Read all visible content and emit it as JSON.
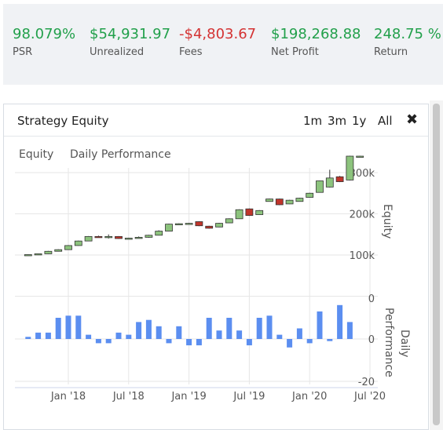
{
  "stats": [
    {
      "value": "98.079%",
      "label": "PSR",
      "tone": "green"
    },
    {
      "value": "$54,931.97",
      "label": "Unrealized",
      "tone": "green"
    },
    {
      "value": "-$4,803.67",
      "label": "Fees",
      "tone": "red"
    },
    {
      "value": "$198,268.88",
      "label": "Net Profit",
      "tone": "green"
    },
    {
      "value": "248.75 %",
      "label": "Return",
      "tone": "green"
    }
  ],
  "panel": {
    "title": "Strategy Equity",
    "ranges": [
      "1m",
      "3m",
      "1y",
      "All"
    ],
    "close_icon": "close-icon"
  },
  "colors": {
    "up": "#8cc37d",
    "down": "#c0352b",
    "bar": "#5b8ef0",
    "green": "#22a04b",
    "red": "#d43333"
  },
  "chart_data": [
    {
      "type": "candlestick",
      "legend": [
        "Equity",
        "Daily Performance"
      ],
      "ylabel": "Equity",
      "yticks": [
        "100k",
        "200k",
        "300k"
      ],
      "ylim": [
        0,
        340000
      ],
      "x_ticks": [
        "Jan '18",
        "Jul '18",
        "Jan '19",
        "Jul '19",
        "Jan '20",
        "Jul '20"
      ],
      "x_tick_dates": [
        "2018-01",
        "2018-07",
        "2019-01",
        "2019-07",
        "2020-01",
        "2020-07"
      ],
      "candles": [
        {
          "date": "2017-09",
          "open": 100000,
          "close": 101000,
          "high": 101500,
          "low": 99500
        },
        {
          "date": "2017-10",
          "open": 101000,
          "close": 103000,
          "high": 103500,
          "low": 100500
        },
        {
          "date": "2017-11",
          "open": 103000,
          "close": 109000,
          "high": 110000,
          "low": 102500
        },
        {
          "date": "2017-12",
          "open": 109000,
          "close": 113000,
          "high": 114000,
          "low": 108500
        },
        {
          "date": "2018-01",
          "open": 113000,
          "close": 123000,
          "high": 124000,
          "low": 112500
        },
        {
          "date": "2018-02",
          "open": 123000,
          "close": 134000,
          "high": 135000,
          "low": 122500
        },
        {
          "date": "2018-03",
          "open": 134000,
          "close": 145000,
          "high": 146000,
          "low": 133500
        },
        {
          "date": "2018-04",
          "open": 145000,
          "close": 143000,
          "high": 147000,
          "low": 142000
        },
        {
          "date": "2018-05",
          "open": 143000,
          "close": 145000,
          "high": 150000,
          "low": 140000
        },
        {
          "date": "2018-06",
          "open": 145000,
          "close": 140000,
          "high": 146000,
          "low": 139000
        },
        {
          "date": "2018-07",
          "open": 140000,
          "close": 141000,
          "high": 142000,
          "low": 139000
        },
        {
          "date": "2018-08",
          "open": 141000,
          "close": 143000,
          "high": 145000,
          "low": 140000
        },
        {
          "date": "2018-09",
          "open": 143000,
          "close": 148000,
          "high": 149000,
          "low": 142000
        },
        {
          "date": "2018-10",
          "open": 148000,
          "close": 158000,
          "high": 160000,
          "low": 147500
        },
        {
          "date": "2018-11",
          "open": 158000,
          "close": 175000,
          "high": 176000,
          "low": 157500
        },
        {
          "date": "2018-12",
          "open": 175000,
          "close": 176000,
          "high": 177000,
          "low": 173000
        },
        {
          "date": "2019-01",
          "open": 176000,
          "close": 177000,
          "high": 178000,
          "low": 175500
        },
        {
          "date": "2019-02",
          "open": 181000,
          "close": 171000,
          "high": 182000,
          "low": 170000
        },
        {
          "date": "2019-03",
          "open": 170000,
          "close": 165000,
          "high": 171000,
          "low": 164000
        },
        {
          "date": "2019-04",
          "open": 168000,
          "close": 177000,
          "high": 178000,
          "low": 167500
        },
        {
          "date": "2019-05",
          "open": 178000,
          "close": 188000,
          "high": 189000,
          "low": 177500
        },
        {
          "date": "2019-06",
          "open": 188000,
          "close": 210000,
          "high": 211000,
          "low": 187500
        },
        {
          "date": "2019-07",
          "open": 212000,
          "close": 196000,
          "high": 213000,
          "low": 195000
        },
        {
          "date": "2019-08",
          "open": 198000,
          "close": 208000,
          "high": 209000,
          "low": 197500
        },
        {
          "date": "2019-09",
          "open": 230000,
          "close": 236000,
          "high": 237000,
          "low": 229500
        },
        {
          "date": "2019-10",
          "open": 236000,
          "close": 222000,
          "high": 237000,
          "low": 221000
        },
        {
          "date": "2019-11",
          "open": 224000,
          "close": 233000,
          "high": 234000,
          "low": 223500
        },
        {
          "date": "2019-12",
          "open": 230000,
          "close": 238000,
          "high": 239000,
          "low": 229500
        },
        {
          "date": "2020-01",
          "open": 240000,
          "close": 250000,
          "high": 251000,
          "low": 239500
        },
        {
          "date": "2020-02",
          "open": 252000,
          "close": 280000,
          "high": 281000,
          "low": 251500
        },
        {
          "date": "2020-03",
          "open": 265000,
          "close": 287000,
          "high": 307000,
          "low": 264000
        },
        {
          "date": "2020-04",
          "open": 290000,
          "close": 278000,
          "high": 292000,
          "low": 277000
        },
        {
          "date": "2020-05",
          "open": 282000,
          "close": 340000,
          "high": 341000,
          "low": 281000
        },
        {
          "date": "2020-06",
          "open": 340000,
          "close": 340000,
          "high": 341000,
          "low": 339000
        }
      ]
    },
    {
      "type": "bar",
      "ylabel": "Daily Performance",
      "yticks": [
        "0",
        "-20"
      ],
      "ylim": [
        -22,
        22
      ],
      "dates": [
        "2017-09",
        "2017-10",
        "2017-11",
        "2017-12",
        "2018-01",
        "2018-02",
        "2018-03",
        "2018-04",
        "2018-05",
        "2018-06",
        "2018-07",
        "2018-08",
        "2018-09",
        "2018-10",
        "2018-11",
        "2018-12",
        "2019-01",
        "2019-02",
        "2019-03",
        "2019-04",
        "2019-05",
        "2019-06",
        "2019-07",
        "2019-08",
        "2019-09",
        "2019-10",
        "2019-11",
        "2019-12",
        "2020-01",
        "2020-02",
        "2020-03",
        "2020-04",
        "2020-05",
        "2020-06"
      ],
      "values": [
        1,
        3,
        3,
        10,
        11,
        11,
        2,
        -2,
        -2,
        3,
        2,
        8,
        9,
        6,
        -2,
        6,
        -3,
        -3,
        10,
        4,
        10,
        4,
        -3,
        10,
        11,
        2,
        -4,
        5,
        -2,
        13,
        -1,
        16,
        8,
        0
      ]
    }
  ]
}
